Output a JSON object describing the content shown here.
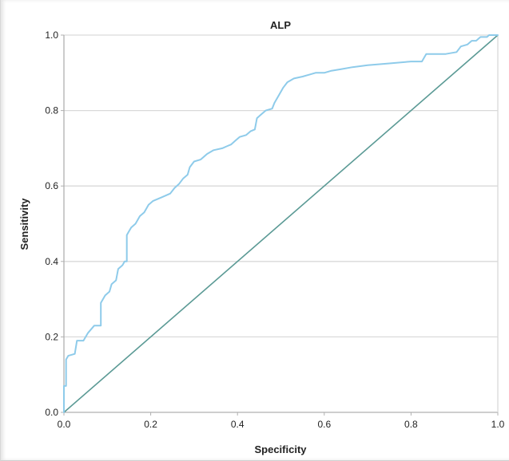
{
  "chart_data": {
    "type": "line",
    "title": "ALP",
    "xlabel": "Specificity",
    "ylabel": "Sensitivity",
    "xlim": [
      0,
      1
    ],
    "ylim": [
      0,
      1
    ],
    "xticks": [
      "0.0",
      "0.2",
      "0.4",
      "0.6",
      "0.8",
      "1.0"
    ],
    "yticks": [
      "0.0",
      "0.2",
      "0.4",
      "0.6",
      "0.8",
      "1.0"
    ],
    "grid": "horizontal",
    "colors": {
      "roc": "#8ecbea",
      "reference": "#5b9a95",
      "grid": "#d9d9d9",
      "axis": "#b0b0b0"
    },
    "series": [
      {
        "points": [
          [
            0.0,
            0.0
          ],
          [
            0.0,
            0.07
          ],
          [
            0.005,
            0.07
          ],
          [
            0.005,
            0.14
          ],
          [
            0.01,
            0.15
          ],
          [
            0.025,
            0.155
          ],
          [
            0.03,
            0.19
          ],
          [
            0.045,
            0.19
          ],
          [
            0.055,
            0.21
          ],
          [
            0.07,
            0.23
          ],
          [
            0.085,
            0.23
          ],
          [
            0.085,
            0.29
          ],
          [
            0.095,
            0.31
          ],
          [
            0.105,
            0.32
          ],
          [
            0.11,
            0.34
          ],
          [
            0.12,
            0.35
          ],
          [
            0.125,
            0.38
          ],
          [
            0.135,
            0.39
          ],
          [
            0.14,
            0.4
          ],
          [
            0.145,
            0.4
          ],
          [
            0.145,
            0.47
          ],
          [
            0.15,
            0.48
          ],
          [
            0.155,
            0.49
          ],
          [
            0.165,
            0.5
          ],
          [
            0.175,
            0.52
          ],
          [
            0.185,
            0.53
          ],
          [
            0.195,
            0.55
          ],
          [
            0.205,
            0.56
          ],
          [
            0.225,
            0.57
          ],
          [
            0.245,
            0.58
          ],
          [
            0.255,
            0.595
          ],
          [
            0.265,
            0.605
          ],
          [
            0.275,
            0.62
          ],
          [
            0.285,
            0.63
          ],
          [
            0.29,
            0.65
          ],
          [
            0.3,
            0.665
          ],
          [
            0.315,
            0.67
          ],
          [
            0.33,
            0.685
          ],
          [
            0.345,
            0.695
          ],
          [
            0.365,
            0.7
          ],
          [
            0.375,
            0.705
          ],
          [
            0.385,
            0.71
          ],
          [
            0.395,
            0.72
          ],
          [
            0.405,
            0.73
          ],
          [
            0.42,
            0.735
          ],
          [
            0.43,
            0.745
          ],
          [
            0.44,
            0.75
          ],
          [
            0.445,
            0.78
          ],
          [
            0.455,
            0.79
          ],
          [
            0.465,
            0.8
          ],
          [
            0.48,
            0.805
          ],
          [
            0.485,
            0.82
          ],
          [
            0.495,
            0.84
          ],
          [
            0.505,
            0.86
          ],
          [
            0.515,
            0.875
          ],
          [
            0.53,
            0.885
          ],
          [
            0.55,
            0.89
          ],
          [
            0.565,
            0.895
          ],
          [
            0.58,
            0.9
          ],
          [
            0.6,
            0.9
          ],
          [
            0.615,
            0.905
          ],
          [
            0.64,
            0.91
          ],
          [
            0.665,
            0.915
          ],
          [
            0.7,
            0.92
          ],
          [
            0.75,
            0.925
          ],
          [
            0.8,
            0.93
          ],
          [
            0.825,
            0.93
          ],
          [
            0.835,
            0.95
          ],
          [
            0.88,
            0.95
          ],
          [
            0.905,
            0.955
          ],
          [
            0.915,
            0.97
          ],
          [
            0.93,
            0.975
          ],
          [
            0.94,
            0.985
          ],
          [
            0.95,
            0.985
          ],
          [
            0.96,
            0.995
          ],
          [
            0.975,
            0.995
          ],
          [
            0.98,
            1.0
          ],
          [
            1.0,
            1.0
          ]
        ]
      },
      {
        "points": [
          [
            0,
            0
          ],
          [
            1,
            1
          ]
        ]
      }
    ]
  }
}
